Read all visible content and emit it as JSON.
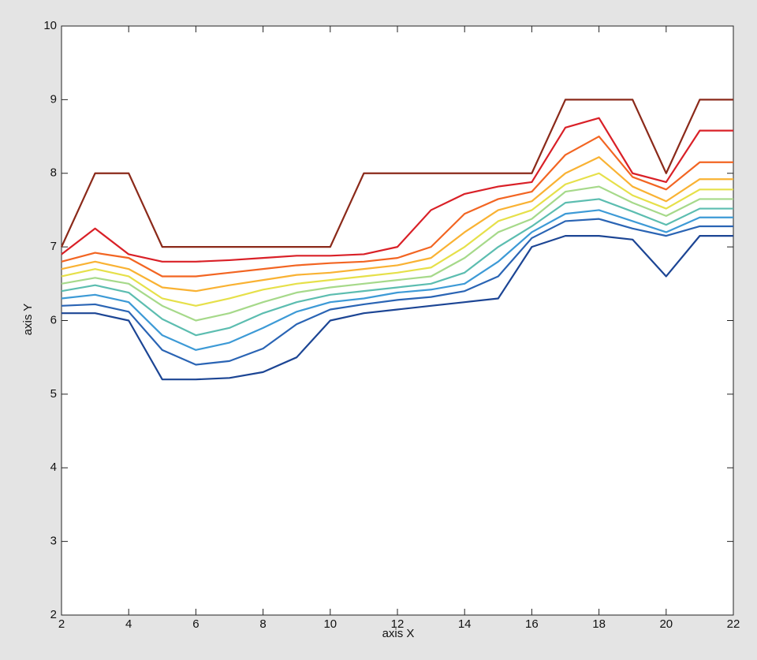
{
  "chart_data": {
    "type": "line",
    "x_label": "axis X",
    "y_label": "axis Y",
    "x": [
      2,
      3,
      4,
      5,
      6,
      7,
      8,
      9,
      10,
      11,
      12,
      13,
      14,
      15,
      16,
      17,
      18,
      19,
      20,
      21,
      22
    ],
    "series": [
      {
        "color": "#8b2a1a",
        "values": [
          7,
          8,
          8,
          7,
          7,
          7,
          7,
          7,
          7,
          8,
          8,
          8,
          8,
          8,
          8,
          9,
          9,
          9,
          8,
          9,
          9
        ]
      },
      {
        "color": "#d92027",
        "values": [
          6.9,
          7.25,
          6.9,
          6.8,
          6.8,
          6.82,
          6.85,
          6.88,
          6.88,
          6.9,
          7.0,
          7.5,
          7.72,
          7.82,
          7.88,
          8.62,
          8.75,
          8.0,
          7.88,
          8.58,
          8.58
        ]
      },
      {
        "color": "#f26522",
        "values": [
          6.8,
          6.92,
          6.85,
          6.6,
          6.6,
          6.65,
          6.7,
          6.75,
          6.78,
          6.8,
          6.85,
          7.0,
          7.45,
          7.65,
          7.75,
          8.25,
          8.5,
          7.95,
          7.78,
          8.15,
          8.15
        ]
      },
      {
        "color": "#f9b233",
        "values": [
          6.7,
          6.8,
          6.7,
          6.45,
          6.4,
          6.48,
          6.55,
          6.62,
          6.65,
          6.7,
          6.75,
          6.85,
          7.2,
          7.5,
          7.62,
          8.0,
          8.22,
          7.82,
          7.62,
          7.92,
          7.92
        ]
      },
      {
        "color": "#e6e04a",
        "values": [
          6.6,
          6.7,
          6.6,
          6.3,
          6.2,
          6.3,
          6.42,
          6.5,
          6.55,
          6.6,
          6.65,
          6.72,
          7.0,
          7.35,
          7.5,
          7.85,
          8.0,
          7.7,
          7.52,
          7.78,
          7.78
        ]
      },
      {
        "color": "#a6d98a",
        "values": [
          6.5,
          6.58,
          6.5,
          6.2,
          6.0,
          6.1,
          6.25,
          6.38,
          6.45,
          6.5,
          6.55,
          6.6,
          6.85,
          7.2,
          7.38,
          7.75,
          7.82,
          7.6,
          7.42,
          7.65,
          7.65
        ]
      },
      {
        "color": "#5cbdb0",
        "values": [
          6.4,
          6.48,
          6.38,
          6.02,
          5.8,
          5.9,
          6.1,
          6.25,
          6.35,
          6.4,
          6.45,
          6.5,
          6.65,
          7.0,
          7.28,
          7.6,
          7.65,
          7.48,
          7.3,
          7.52,
          7.52
        ]
      },
      {
        "color": "#3d9ad6",
        "values": [
          6.3,
          6.35,
          6.25,
          5.8,
          5.6,
          5.7,
          5.9,
          6.12,
          6.25,
          6.3,
          6.38,
          6.42,
          6.5,
          6.8,
          7.2,
          7.45,
          7.5,
          7.35,
          7.2,
          7.4,
          7.4
        ]
      },
      {
        "color": "#2a64b4",
        "values": [
          6.2,
          6.22,
          6.12,
          5.6,
          5.4,
          5.45,
          5.62,
          5.95,
          6.15,
          6.22,
          6.28,
          6.32,
          6.4,
          6.6,
          7.12,
          7.35,
          7.38,
          7.25,
          7.15,
          7.28,
          7.28
        ]
      },
      {
        "color": "#1c4594",
        "values": [
          6.1,
          6.1,
          6.0,
          5.2,
          5.2,
          5.22,
          5.3,
          5.5,
          6.0,
          6.1,
          6.15,
          6.2,
          6.25,
          6.3,
          7.0,
          7.15,
          7.15,
          7.1,
          6.6,
          7.15,
          7.15
        ]
      }
    ],
    "xlim": [
      2,
      22
    ],
    "ylim": [
      2,
      10
    ],
    "xticks": [
      2,
      4,
      6,
      8,
      10,
      12,
      14,
      16,
      18,
      20,
      22
    ],
    "yticks": [
      2,
      3,
      4,
      5,
      6,
      7,
      8,
      9,
      10
    ]
  }
}
